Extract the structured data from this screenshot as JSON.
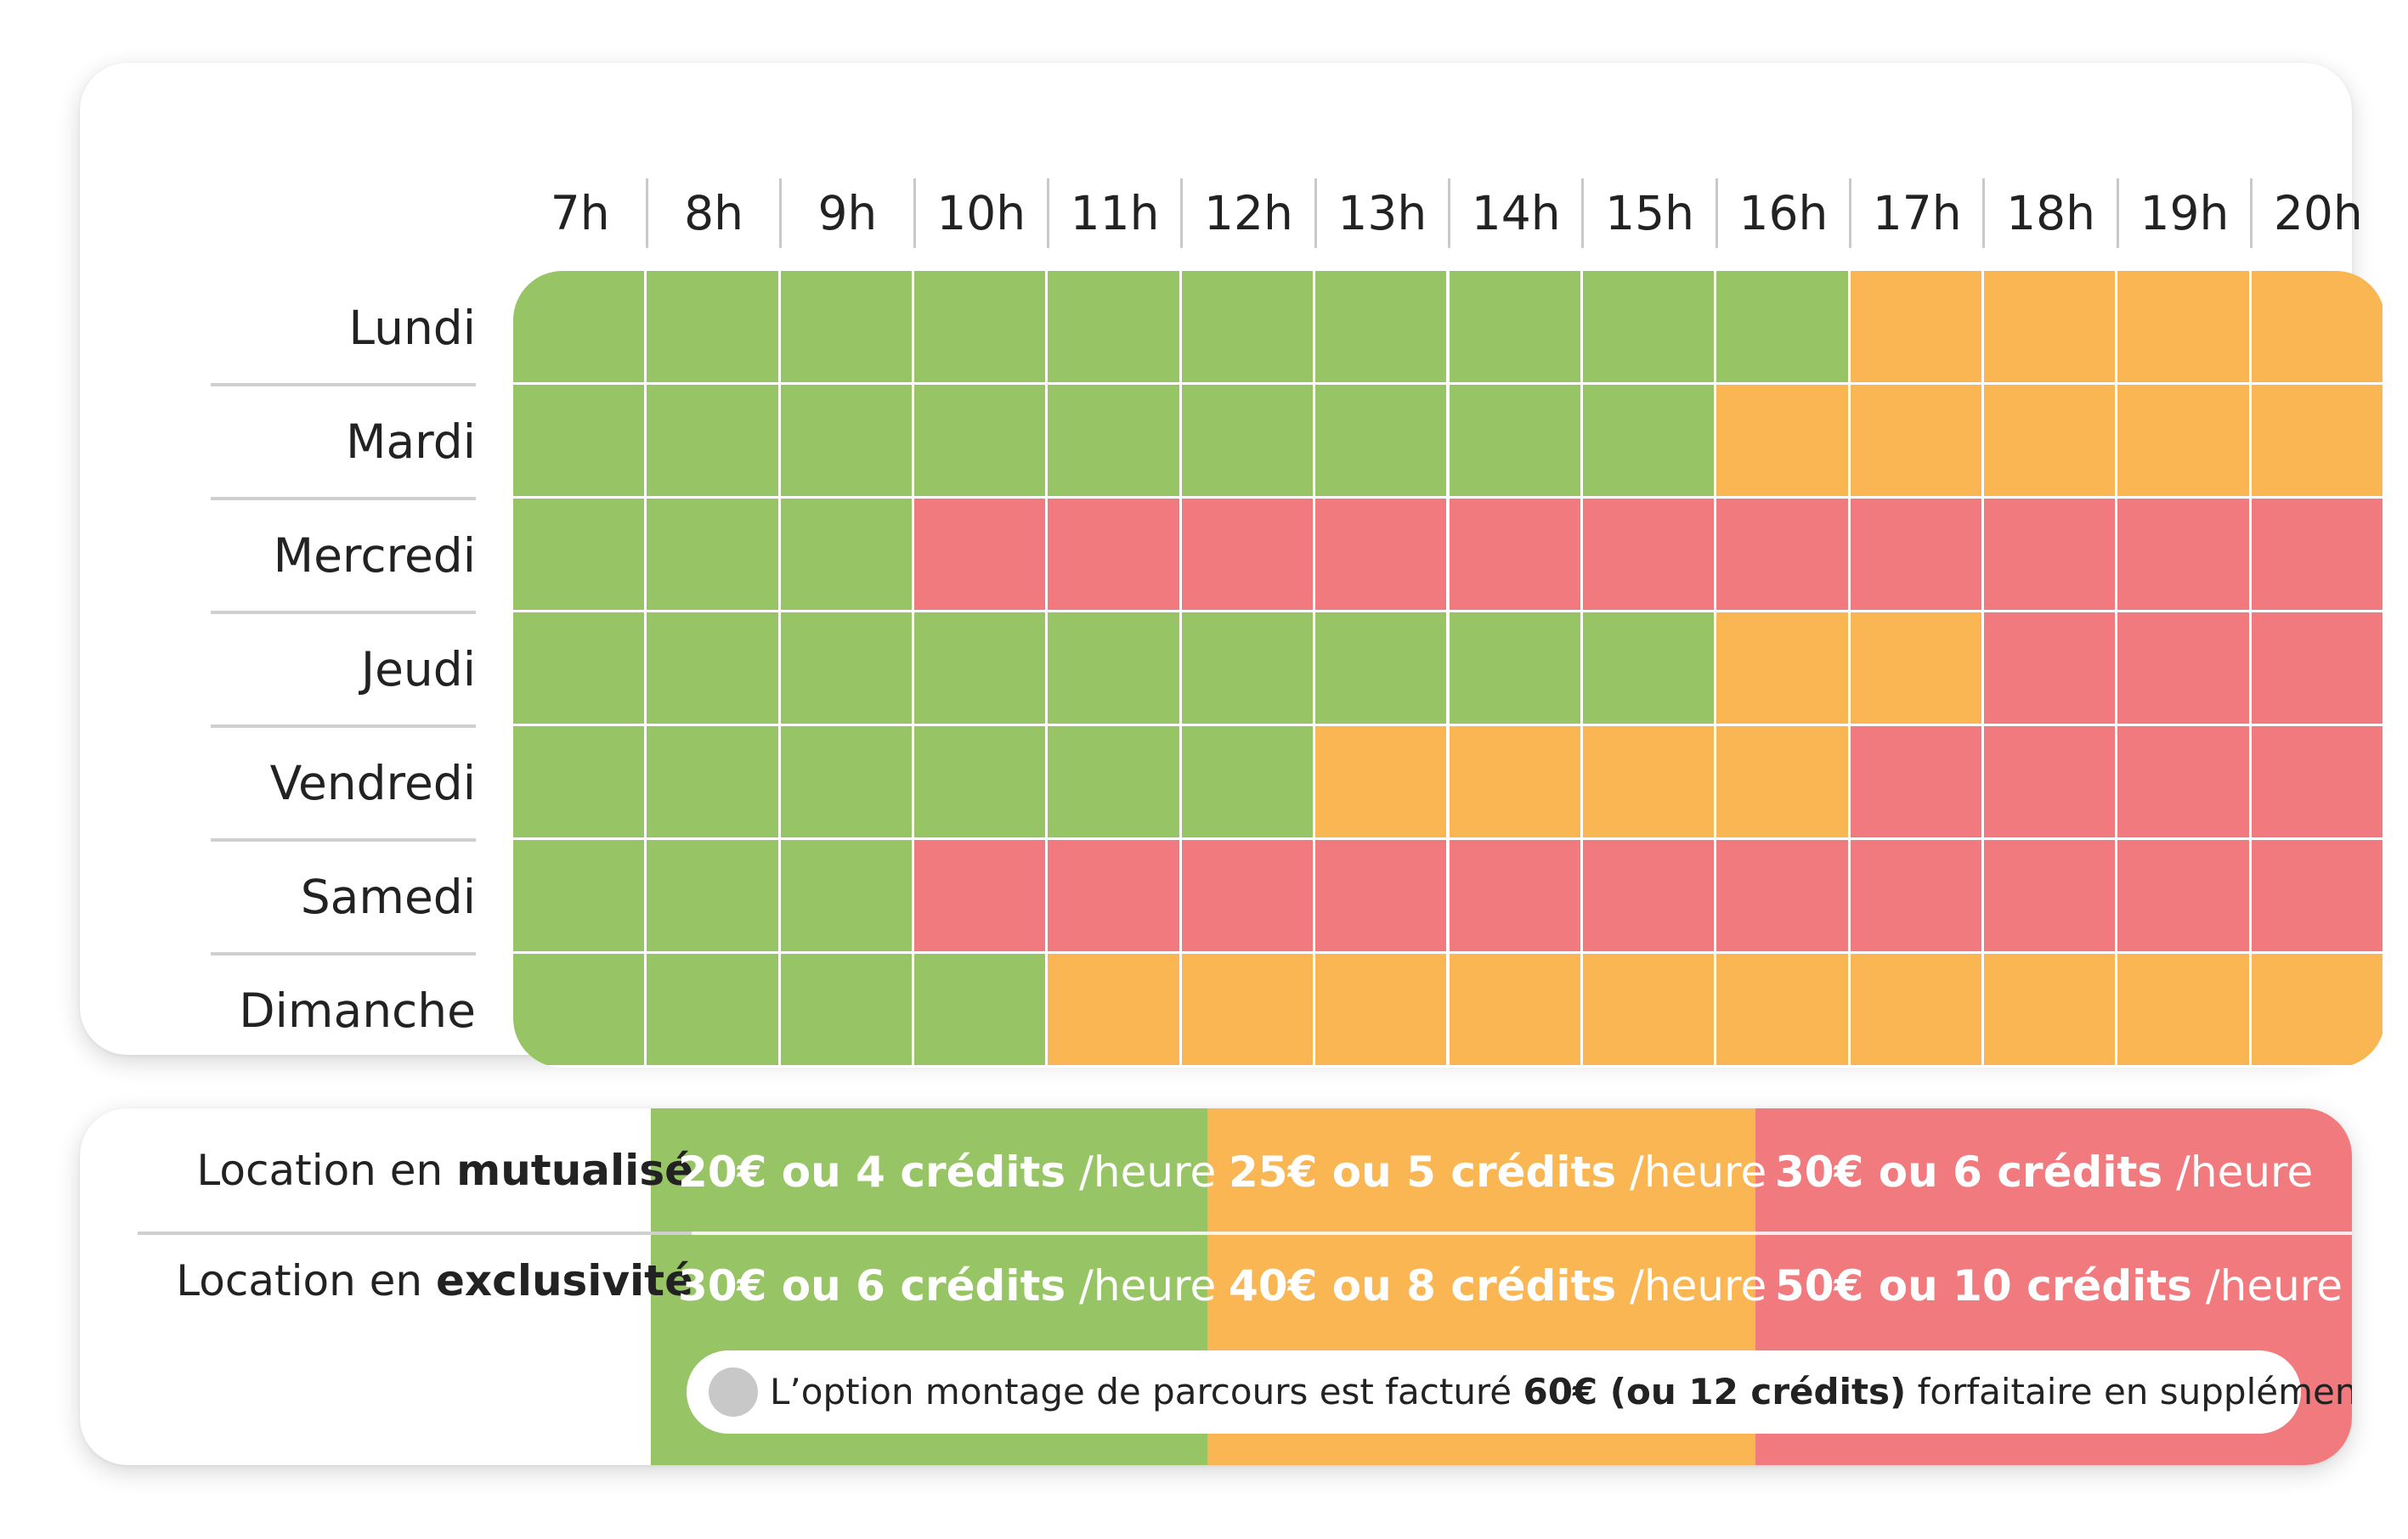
{
  "colors": {
    "green": "#97c465",
    "orange": "#f9b653",
    "red": "#f07a7e"
  },
  "schedule": {
    "hours": [
      "7h",
      "8h",
      "9h",
      "10h",
      "11h",
      "12h",
      "13h",
      "14h",
      "15h",
      "16h",
      "17h",
      "18h",
      "19h",
      "20h"
    ],
    "days": [
      {
        "name": "Lundi",
        "slots": [
          "green",
          "green",
          "green",
          "green",
          "green",
          "green",
          "green",
          "green",
          "green",
          "green",
          "orange",
          "orange",
          "orange",
          "orange"
        ]
      },
      {
        "name": "Mardi",
        "slots": [
          "green",
          "green",
          "green",
          "green",
          "green",
          "green",
          "green",
          "green",
          "green",
          "orange",
          "orange",
          "orange",
          "orange",
          "orange"
        ]
      },
      {
        "name": "Mercredi",
        "slots": [
          "green",
          "green",
          "green",
          "red",
          "red",
          "red",
          "red",
          "red",
          "red",
          "red",
          "red",
          "red",
          "red",
          "red"
        ]
      },
      {
        "name": "Jeudi",
        "slots": [
          "green",
          "green",
          "green",
          "green",
          "green",
          "green",
          "green",
          "green",
          "green",
          "orange",
          "orange",
          "red",
          "red",
          "red"
        ]
      },
      {
        "name": "Vendredi",
        "slots": [
          "green",
          "green",
          "green",
          "green",
          "green",
          "green",
          "orange",
          "orange",
          "orange",
          "orange",
          "red",
          "red",
          "red",
          "red"
        ]
      },
      {
        "name": "Samedi",
        "slots": [
          "green",
          "green",
          "green",
          "red",
          "red",
          "red",
          "red",
          "red",
          "red",
          "red",
          "red",
          "red",
          "red",
          "red"
        ]
      },
      {
        "name": "Dimanche",
        "slots": [
          "green",
          "green",
          "green",
          "green",
          "orange",
          "orange",
          "orange",
          "orange",
          "orange",
          "orange",
          "orange",
          "orange",
          "orange",
          "orange"
        ]
      }
    ]
  },
  "pricing": {
    "rows": [
      {
        "label_prefix": "Location en ",
        "label_bold": "mutualisé",
        "prices": [
          {
            "amount": "20€ ou 4 crédits",
            "unit": " /heure"
          },
          {
            "amount": "25€ ou 5 crédits",
            "unit": " /heure"
          },
          {
            "amount": "30€ ou 6 crédits",
            "unit": " /heure"
          }
        ]
      },
      {
        "label_prefix": "Location en ",
        "label_bold": "exclusivité",
        "prices": [
          {
            "amount": "30€ ou 6 crédits",
            "unit": " /heure"
          },
          {
            "amount": "40€ ou 8 crédits",
            "unit": " /heure"
          },
          {
            "amount": "50€ ou 10 crédits",
            "unit": " /heure"
          }
        ]
      }
    ],
    "note": {
      "prefix": "L’option montage de parcours est facturé ",
      "bold": "60€ (ou 12 crédits)",
      "suffix": " forfaitaire en supplément"
    }
  }
}
